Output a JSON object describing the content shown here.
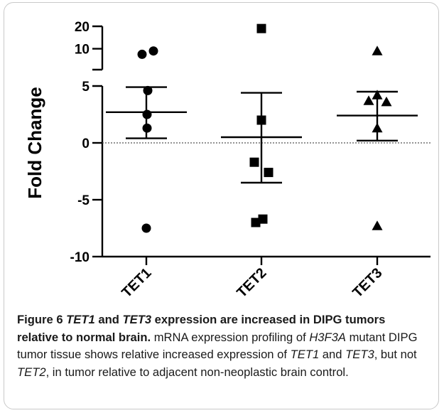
{
  "chart_data": {
    "type": "scatter",
    "title": "",
    "xlabel": "",
    "ylabel": "Fold Change",
    "categories": [
      "TET1",
      "TET2",
      "TET3"
    ],
    "y_ticks_lower": [
      "5",
      "0",
      "-5",
      "-10"
    ],
    "y_ticks_upper": [
      "20",
      "10"
    ],
    "ylim_lower": [
      -10,
      5
    ],
    "ylim_upper": [
      7,
      20
    ],
    "axis_break": true,
    "reference_line": 0,
    "grid": false,
    "legend": "none",
    "series": [
      {
        "category": "TET1",
        "marker": "circle",
        "points": [
          9,
          7.5,
          4.6,
          2.5,
          1.3,
          -7.5
        ],
        "mean": 2.7,
        "error_high": 4.9,
        "error_low": 0.4
      },
      {
        "category": "TET2",
        "marker": "square",
        "points": [
          19,
          2.0,
          -1.7,
          -2.6,
          -6.7,
          -7.0
        ],
        "mean": 0.5,
        "error_high": 4.4,
        "error_low": -3.5
      },
      {
        "category": "TET3",
        "marker": "triangle",
        "points": [
          9,
          4.2,
          3.7,
          3.6,
          1.3,
          -7.3
        ],
        "mean": 2.4,
        "error_high": 4.5,
        "error_low": 0.2
      }
    ]
  },
  "caption": {
    "label": "Figure 6",
    "title_parts": [
      {
        "text": "TET1",
        "italic": true
      },
      {
        "text": " and ",
        "italic": false
      },
      {
        "text": "TET3",
        "italic": true
      },
      {
        "text": " expression are increased in DIPG tumors relative to normal brain.",
        "italic": false
      }
    ],
    "body_parts": [
      {
        "text": " mRNA expression profiling of ",
        "italic": false
      },
      {
        "text": "H3F3A",
        "italic": true
      },
      {
        "text": " mutant DIPG tumor tissue shows relative increased expression of ",
        "italic": false
      },
      {
        "text": "TET1",
        "italic": true
      },
      {
        "text": " and ",
        "italic": false
      },
      {
        "text": "TET3",
        "italic": true
      },
      {
        "text": ", but not ",
        "italic": false
      },
      {
        "text": "TET2",
        "italic": true
      },
      {
        "text": ", in tumor relative to adjacent non-neoplastic brain control.",
        "italic": false
      }
    ]
  }
}
